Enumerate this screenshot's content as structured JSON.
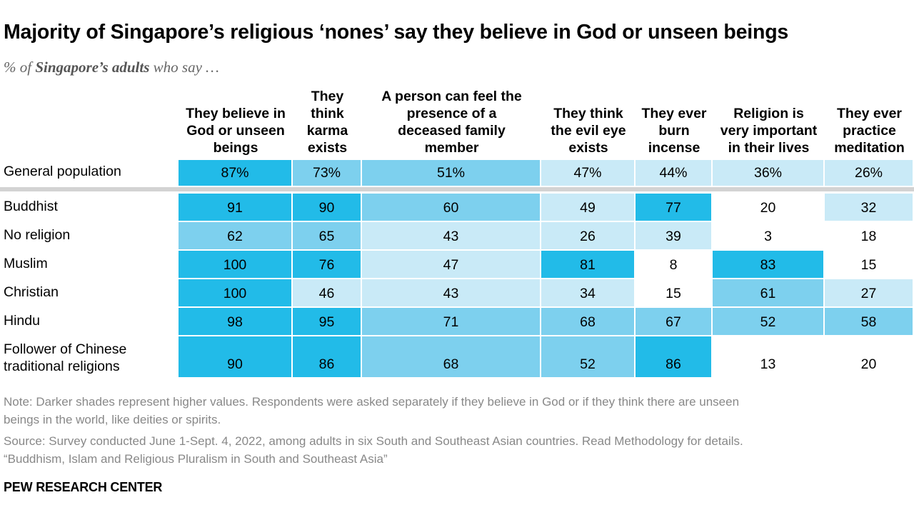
{
  "title": "Majority of Singapore’s religious ‘nones’ say they believe in God or unseen beings",
  "subtitle_prefix": "% of ",
  "subtitle_bold": "Singapore’s adults",
  "subtitle_suffix": " who say …",
  "chart_data": {
    "type": "table",
    "columns": [
      [
        "They believe in",
        "God or unseen",
        "beings"
      ],
      [
        "They",
        "think",
        "karma",
        "exists"
      ],
      [
        "A person can feel the",
        "presence of a",
        "deceased family",
        "member"
      ],
      [
        "They think",
        "the evil eye",
        "exists"
      ],
      [
        "They ever",
        "burn",
        "incense"
      ],
      [
        "Religion is",
        "very important",
        "in their lives"
      ],
      [
        "They ever",
        "practice",
        "meditation"
      ]
    ],
    "general_population": {
      "label": "General population",
      "values": [
        87,
        73,
        51,
        47,
        44,
        36,
        26
      ],
      "display": [
        "87%",
        "73%",
        "51%",
        "47%",
        "44%",
        "36%",
        "26%"
      ]
    },
    "rows": [
      {
        "label": [
          "Buddhist"
        ],
        "values": [
          91,
          90,
          60,
          49,
          77,
          20,
          32
        ]
      },
      {
        "label": [
          "No religion"
        ],
        "values": [
          62,
          65,
          43,
          26,
          39,
          3,
          18
        ]
      },
      {
        "label": [
          "Muslim"
        ],
        "values": [
          100,
          76,
          47,
          81,
          8,
          83,
          15
        ]
      },
      {
        "label": [
          "Christian"
        ],
        "values": [
          100,
          46,
          43,
          34,
          15,
          61,
          27
        ]
      },
      {
        "label": [
          "Hindu"
        ],
        "values": [
          98,
          95,
          71,
          68,
          67,
          52,
          58
        ]
      },
      {
        "label": [
          "Follower of Chinese",
          "traditional religions"
        ],
        "values": [
          90,
          86,
          68,
          52,
          86,
          13,
          20
        ]
      }
    ],
    "shade_colors": [
      "#ffffff",
      "#c9eaf7",
      "#7dd0ee",
      "#22bbe8"
    ]
  },
  "note_lines": [
    "Note: Darker shades represent higher values. Respondents were asked separately if they believe in God or if they think there are unseen",
    "beings in the world, like deities or spirits.",
    "Source: Survey conducted June 1-Sept. 4, 2022, among adults in six South and Southeast Asian countries. Read Methodology for details.",
    "“Buddhism, Islam and Religious Pluralism in South and Southeast Asia”"
  ],
  "brand": "PEW RESEARCH CENTER"
}
